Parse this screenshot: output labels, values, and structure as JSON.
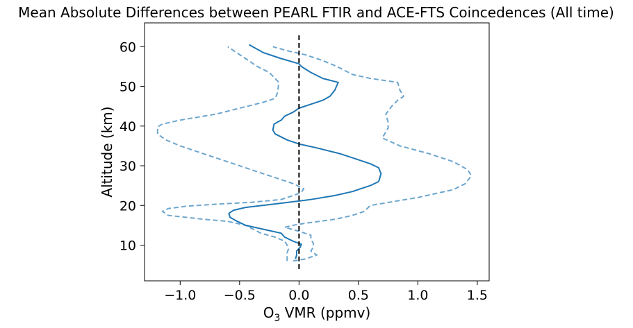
{
  "chart_data": {
    "type": "line",
    "title": "Mean Absolute Differences between PEARL FTIR and ACE-FTS Coincedences (All time)",
    "xlabel": {
      "prefix": "O",
      "subscript": "3",
      "suffix": " VMR (ppmv)"
    },
    "ylabel": "Altitude (km)",
    "xlim": [
      -1.3,
      1.6
    ],
    "ylim": [
      1,
      66
    ],
    "xticks": [
      -1.0,
      -0.5,
      0.0,
      0.5,
      1.0,
      1.5
    ],
    "xtick_labels": [
      "−1.0",
      "−0.5",
      "0.0",
      "0.5",
      "1.0",
      "1.5"
    ],
    "yticks": [
      10,
      20,
      30,
      40,
      50,
      60
    ],
    "ytick_labels": [
      "10",
      "20",
      "30",
      "40",
      "50",
      "60"
    ],
    "grid": false,
    "colors": {
      "mean": "#1f77b4",
      "bound": "#1f77b4",
      "zero_line": "#000000"
    },
    "series": [
      {
        "role": "mean",
        "style": "solid",
        "points": [
          [
            -0.03,
            6.5
          ],
          [
            -0.02,
            7.5
          ],
          [
            -0.02,
            8.5
          ],
          [
            0.01,
            9.5
          ],
          [
            0.02,
            10.2
          ],
          [
            -0.05,
            11
          ],
          [
            -0.12,
            12
          ],
          [
            -0.15,
            13
          ],
          [
            -0.3,
            14
          ],
          [
            -0.45,
            15
          ],
          [
            -0.52,
            16
          ],
          [
            -0.58,
            17
          ],
          [
            -0.59,
            18
          ],
          [
            -0.55,
            18.8
          ],
          [
            -0.45,
            19.5
          ],
          [
            -0.25,
            20.2
          ],
          [
            0.1,
            21.5
          ],
          [
            0.3,
            22.5
          ],
          [
            0.45,
            23.5
          ],
          [
            0.6,
            25
          ],
          [
            0.67,
            26
          ],
          [
            0.69,
            28
          ],
          [
            0.67,
            29.5
          ],
          [
            0.6,
            30.5
          ],
          [
            0.5,
            31.5
          ],
          [
            0.35,
            33
          ],
          [
            0.15,
            34.5
          ],
          [
            0.0,
            35.5
          ],
          [
            -0.1,
            36.5
          ],
          [
            -0.2,
            38
          ],
          [
            -0.22,
            39
          ],
          [
            -0.21,
            40.5
          ],
          [
            -0.15,
            41.5
          ],
          [
            -0.12,
            42.5
          ],
          [
            -0.05,
            43.5
          ],
          [
            0.0,
            44.5
          ],
          [
            0.1,
            45.5
          ],
          [
            0.2,
            46.5
          ],
          [
            0.26,
            47.5
          ],
          [
            0.3,
            49
          ],
          [
            0.33,
            51
          ],
          [
            0.2,
            52
          ],
          [
            0.1,
            53.5
          ],
          [
            0.02,
            55
          ],
          [
            0.0,
            55.7
          ],
          [
            -0.15,
            57
          ],
          [
            -0.3,
            58.5
          ],
          [
            -0.42,
            60.5
          ]
        ]
      },
      {
        "role": "lower-bound",
        "style": "dashed",
        "points": [
          [
            -0.1,
            6
          ],
          [
            -0.1,
            7
          ],
          [
            -0.1,
            8
          ],
          [
            -0.09,
            9
          ],
          [
            -0.1,
            10
          ],
          [
            -0.12,
            11
          ],
          [
            -0.2,
            12
          ],
          [
            -0.32,
            13
          ],
          [
            -0.45,
            15
          ],
          [
            -0.6,
            16
          ],
          [
            -0.8,
            16.5
          ],
          [
            -0.95,
            17
          ],
          [
            -1.1,
            17.5
          ],
          [
            -1.15,
            18.5
          ],
          [
            -1.1,
            19.2
          ],
          [
            -0.95,
            19.8
          ],
          [
            -0.7,
            20.3
          ],
          [
            -0.4,
            20.8
          ],
          [
            -0.15,
            21.5
          ],
          [
            -0.05,
            22.5
          ],
          [
            0.02,
            23.3
          ],
          [
            0.04,
            24.2
          ],
          [
            -0.05,
            25.5
          ],
          [
            -0.2,
            27
          ],
          [
            -0.4,
            29
          ],
          [
            -0.6,
            31
          ],
          [
            -0.8,
            33
          ],
          [
            -1.0,
            35
          ],
          [
            -1.12,
            36.5
          ],
          [
            -1.19,
            38
          ],
          [
            -1.19,
            39.8
          ],
          [
            -1.15,
            40.5
          ],
          [
            -1.0,
            41.5
          ],
          [
            -0.7,
            43
          ],
          [
            -0.5,
            44.5
          ],
          [
            -0.3,
            46
          ],
          [
            -0.2,
            47
          ],
          [
            -0.18,
            48.5
          ],
          [
            -0.17,
            51
          ],
          [
            -0.25,
            53.5
          ],
          [
            -0.35,
            55
          ],
          [
            -0.45,
            57
          ],
          [
            -0.55,
            59
          ],
          [
            -0.6,
            60
          ]
        ]
      },
      {
        "role": "upper-bound",
        "style": "dashed",
        "points": [
          [
            -0.05,
            6
          ],
          [
            0.05,
            6.5
          ],
          [
            0.15,
            7.5
          ],
          [
            0.1,
            8.5
          ],
          [
            0.12,
            9.5
          ],
          [
            0.12,
            10.5
          ],
          [
            0.1,
            11.5
          ],
          [
            0.1,
            12.5
          ],
          [
            0.0,
            13.5
          ],
          [
            -0.12,
            14.5
          ],
          [
            -0.05,
            15
          ],
          [
            0.05,
            15.5
          ],
          [
            0.3,
            16.5
          ],
          [
            0.45,
            17.5
          ],
          [
            0.55,
            18.5
          ],
          [
            0.6,
            20
          ],
          [
            0.8,
            21
          ],
          [
            1.0,
            22
          ],
          [
            1.15,
            23
          ],
          [
            1.3,
            24
          ],
          [
            1.4,
            25.5
          ],
          [
            1.45,
            27.5
          ],
          [
            1.42,
            29
          ],
          [
            1.3,
            31
          ],
          [
            1.1,
            33
          ],
          [
            0.85,
            35
          ],
          [
            0.7,
            37
          ],
          [
            0.72,
            38
          ],
          [
            0.75,
            39.5
          ],
          [
            0.75,
            41
          ],
          [
            0.73,
            43
          ],
          [
            0.78,
            45
          ],
          [
            0.83,
            46.5
          ],
          [
            0.88,
            47.5
          ],
          [
            0.85,
            49
          ],
          [
            0.83,
            51
          ],
          [
            0.6,
            52
          ],
          [
            0.45,
            53
          ],
          [
            0.32,
            55
          ],
          [
            0.2,
            56.5
          ],
          [
            0.05,
            58
          ],
          [
            -0.1,
            59
          ],
          [
            -0.22,
            60
          ]
        ]
      }
    ],
    "reference_line": {
      "x": 0,
      "y_range": [
        4,
        63
      ],
      "style": "dashed"
    }
  }
}
